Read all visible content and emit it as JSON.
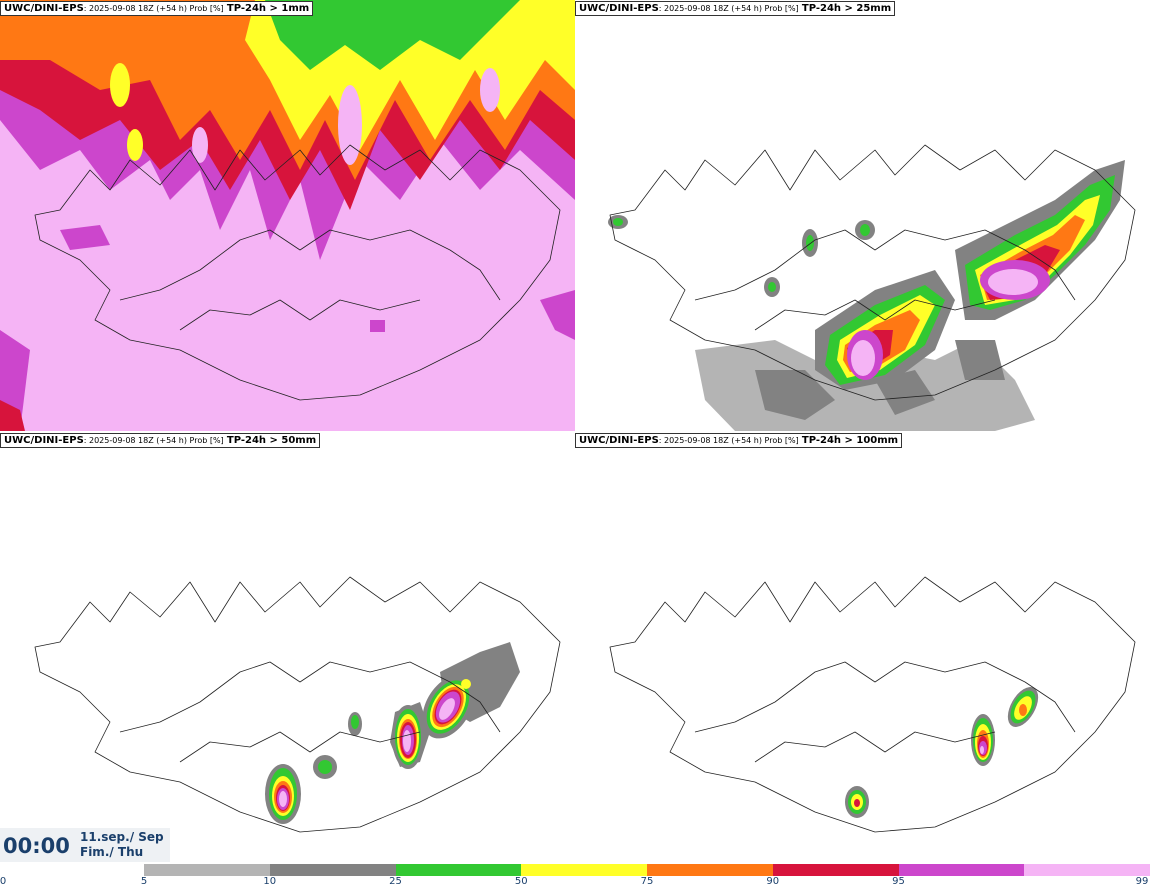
{
  "panels": [
    {
      "model": "UWC/DINI-EPS",
      "meta": ": 2025-09-08 18Z (+54 h) Prob [%]",
      "threshold": "TP-24h > 1mm"
    },
    {
      "model": "UWC/DINI-EPS",
      "meta": ": 2025-09-08 18Z (+54 h) Prob [%]",
      "threshold": "TP-24h > 25mm"
    },
    {
      "model": "UWC/DINI-EPS",
      "meta": ": 2025-09-08 18Z (+54 h) Prob [%]",
      "threshold": "TP-24h > 50mm"
    },
    {
      "model": "UWC/DINI-EPS",
      "meta": ": 2025-09-08 18Z (+54 h) Prob [%]",
      "threshold": "TP-24h > 100mm"
    }
  ],
  "valid": {
    "time": "00:00",
    "date_line1": "11.sep./ Sep",
    "date_line2": "Fim./ Thu"
  },
  "colorbar": {
    "ticks": [
      "0",
      "5",
      "10",
      "25",
      "50",
      "75",
      "90",
      "95",
      "99"
    ],
    "colors": [
      "#ffffff",
      "#b4b4b4",
      "#828282",
      "#32c832",
      "#ffff28",
      "#ff7814",
      "#d7143c",
      "#cc46cc",
      "#f5b4f5"
    ]
  }
}
